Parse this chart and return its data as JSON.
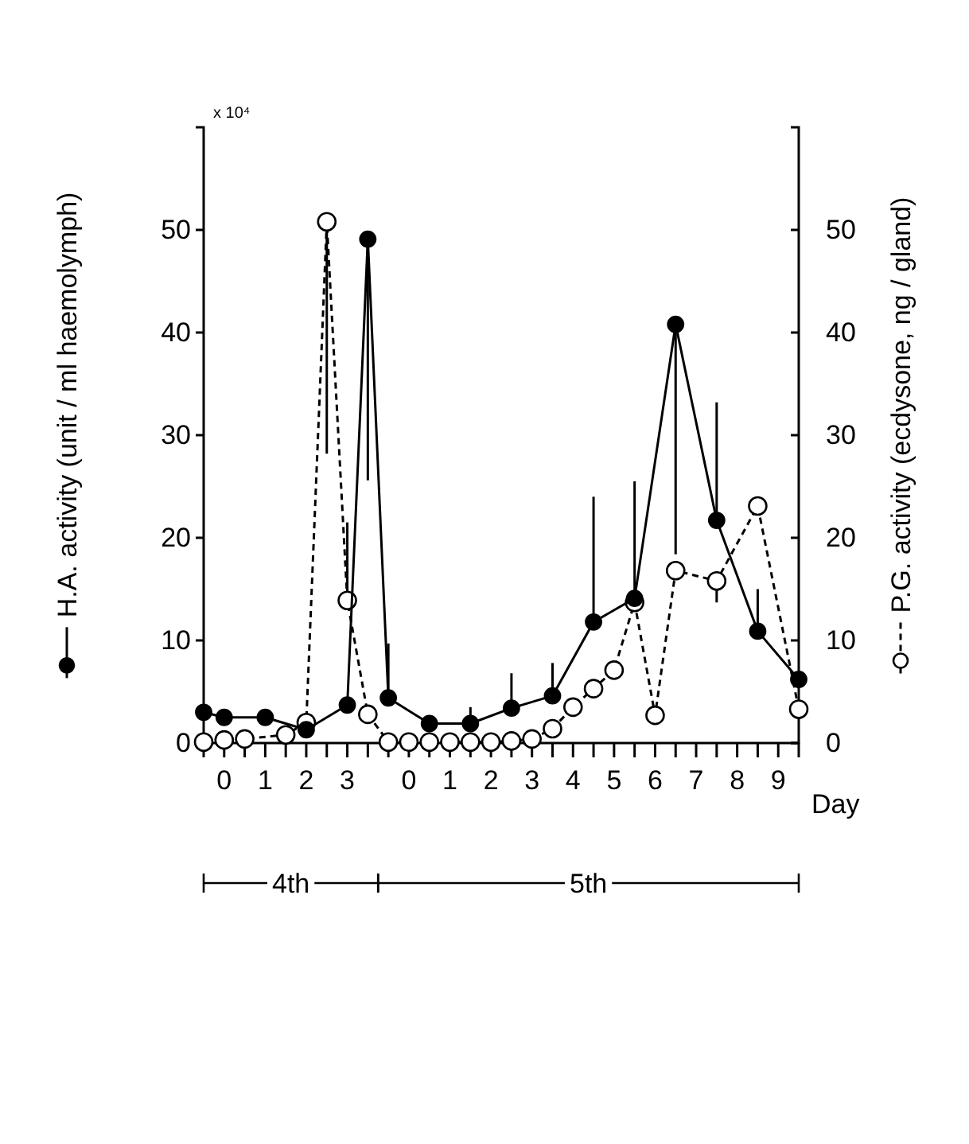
{
  "chart_data": {
    "type": "line",
    "xlabel": "Day",
    "ylabel": "H.A. activity (unit / ml haemolymph)",
    "y2label": "P.G. activity (ecdysone, ng / gland)",
    "annotations": [
      "x 10⁴",
      "4th",
      "5th"
    ],
    "categories": [
      null,
      "0",
      null,
      "1",
      null,
      "2",
      null,
      "3",
      null,
      null,
      "0",
      null,
      "1",
      null,
      "2",
      null,
      "3",
      null,
      "4",
      null,
      "5",
      null,
      "6",
      null,
      "7",
      null,
      "8",
      null,
      "9",
      null
    ],
    "ylim": [
      0,
      60
    ],
    "yticks": [
      0,
      10,
      20,
      30,
      40,
      50
    ],
    "y2lim": [
      0,
      60
    ],
    "y2ticks": [
      0,
      10,
      20,
      30,
      40,
      50
    ],
    "grid": false,
    "marker": "circle",
    "series": [
      {
        "color": "#000000",
        "line_style": "solid",
        "values": [
          3.0,
          2.5,
          null,
          2.5,
          null,
          1.3,
          null,
          3.7,
          49.1,
          4.4,
          null,
          1.9,
          null,
          1.9,
          null,
          3.4,
          null,
          4.6,
          null,
          11.8,
          null,
          14.1,
          null,
          40.8,
          null,
          21.7,
          null,
          10.9,
          null,
          6.2
        ],
        "errors": [
          null,
          null,
          null,
          null,
          null,
          null,
          null,
          null,
          [
            25.6,
            49.1
          ],
          [
            4.4,
            9.7
          ],
          null,
          null,
          null,
          [
            1.9,
            3.5
          ],
          null,
          [
            3.4,
            6.8
          ],
          null,
          [
            4.6,
            7.8
          ],
          null,
          [
            11.8,
            24
          ],
          null,
          [
            14.1,
            25.5
          ],
          null,
          [
            18.4,
            40.8
          ],
          null,
          [
            21.7,
            33.2
          ],
          null,
          [
            10.9,
            15
          ],
          null,
          null
        ]
      },
      {
        "color": "#000000",
        "line_style": "dashed",
        "axis": "y2",
        "values": [
          0.1,
          0.3,
          0.4,
          null,
          0.8,
          2.0,
          50.8,
          13.9,
          2.8,
          0.1,
          0.1,
          0.1,
          0.1,
          0.1,
          0.1,
          0.2,
          0.4,
          1.4,
          3.5,
          5.3,
          7.1,
          13.7,
          2.7,
          16.8,
          null,
          15.8,
          null,
          23.1,
          null,
          3.3
        ],
        "errors": [
          null,
          null,
          null,
          null,
          null,
          null,
          [
            28.2,
            50.8
          ],
          [
            13.9,
            21.5
          ],
          null,
          null,
          null,
          null,
          null,
          null,
          null,
          null,
          null,
          null,
          null,
          null,
          null,
          null,
          null,
          null,
          null,
          [
            13.7,
            15.8
          ],
          null,
          null,
          null,
          null
        ]
      }
    ]
  }
}
